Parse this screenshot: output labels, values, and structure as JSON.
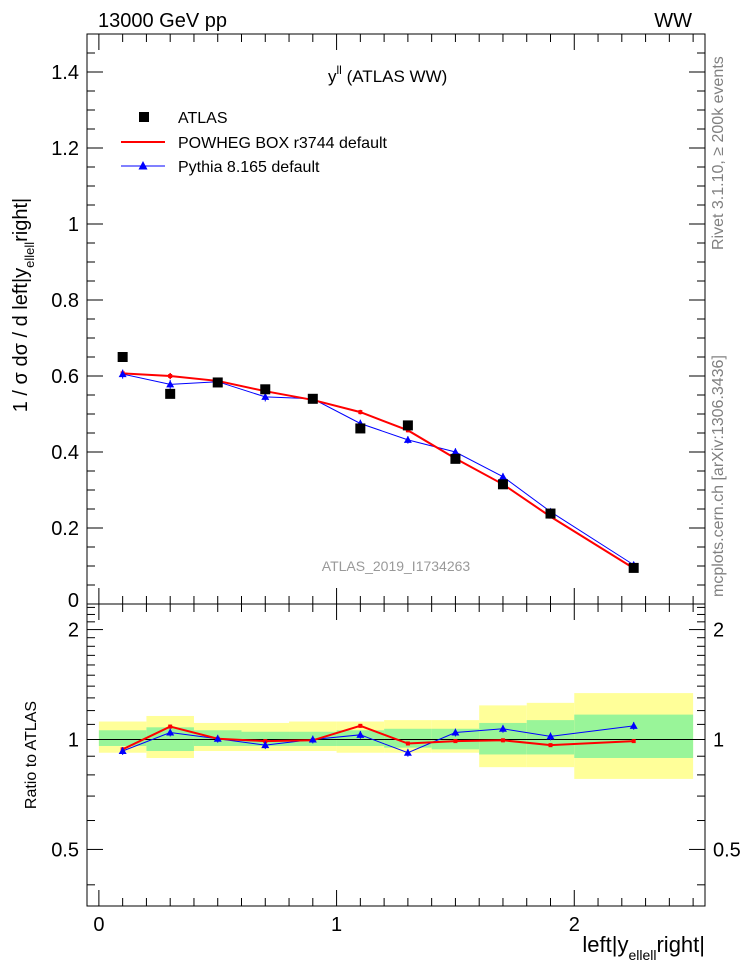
{
  "header": {
    "left": "13000 GeV pp",
    "right": "WW"
  },
  "main_plot": {
    "title_main": "y",
    "title_sup": "ll",
    "title_rest": " (ATLAS WW)",
    "ylabel_prefix": "1 / σ  dσ / d left|y",
    "ylabel_sub": "ellell",
    "ylabel_suffix": "right|",
    "watermark": "ATLAS_2019_I1734263",
    "ylim": [
      0,
      1.5
    ],
    "yticks": [
      0.2,
      0.4,
      0.6,
      0.8,
      1,
      1.2,
      1.4
    ],
    "ytick_labels": [
      "0.2",
      "0.4",
      "0.6",
      "0.8",
      "1",
      "1.2",
      "1.4"
    ],
    "yzero_label": "0"
  },
  "ratio_plot": {
    "ylabel": "Ratio to ATLAS",
    "ylim": [
      0.35,
      2.35
    ],
    "yticks": [
      0.5,
      1,
      2
    ],
    "ytick_labels": [
      "0.5",
      "1",
      "2"
    ]
  },
  "xaxis": {
    "xlim": [
      -0.05,
      2.55
    ],
    "xticks": [
      0,
      1,
      2
    ],
    "xtick_labels": [
      "0",
      "1",
      "2"
    ],
    "label_prefix": "left|y",
    "label_sub": "ellell",
    "label_suffix": "right|"
  },
  "side": {
    "rivet": "Rivet 3.1.10, ≥ 200k events",
    "mcplots": "mcplots.cern.ch [arXiv:1306.3436]"
  },
  "legend": {
    "atlas": "ATLAS",
    "powheg": "POWHEG BOX r3744 default",
    "pythia": "Pythia 8.165 default"
  },
  "colors": {
    "atlas": "#000000",
    "powheg": "#ff0000",
    "pythia": "#0000ff",
    "band_inner": "#99f599",
    "band_outer": "#ffff99"
  },
  "chart_data": {
    "type": "line",
    "bins": [
      {
        "lo": 0.0,
        "hi": 0.2
      },
      {
        "lo": 0.2,
        "hi": 0.4
      },
      {
        "lo": 0.4,
        "hi": 0.6
      },
      {
        "lo": 0.6,
        "hi": 0.8
      },
      {
        "lo": 0.8,
        "hi": 1.0
      },
      {
        "lo": 1.0,
        "hi": 1.2
      },
      {
        "lo": 1.2,
        "hi": 1.4
      },
      {
        "lo": 1.4,
        "hi": 1.6
      },
      {
        "lo": 1.6,
        "hi": 1.8
      },
      {
        "lo": 1.8,
        "hi": 2.0
      },
      {
        "lo": 2.0,
        "hi": 2.5
      }
    ],
    "x": [
      0.1,
      0.3,
      0.5,
      0.7,
      0.9,
      1.1,
      1.3,
      1.5,
      1.7,
      1.9,
      2.25
    ],
    "series": [
      {
        "name": "ATLAS",
        "kind": "data",
        "values": [
          0.65,
          0.553,
          0.583,
          0.565,
          0.54,
          0.462,
          0.47,
          0.382,
          0.315,
          0.238,
          0.095
        ]
      },
      {
        "name": "POWHEG BOX r3744 default",
        "kind": "mc",
        "values": [
          0.607,
          0.6,
          0.587,
          0.56,
          0.537,
          0.505,
          0.457,
          0.383,
          0.315,
          0.23,
          0.094
        ],
        "errors": [
          0.008,
          0.008,
          0.006,
          0.006,
          0.005,
          0.006,
          0.005,
          0.005,
          0.005,
          0.004,
          0.003
        ]
      },
      {
        "name": "Pythia 8.165 default",
        "kind": "mc",
        "values": [
          0.605,
          0.578,
          0.585,
          0.545,
          0.54,
          0.475,
          0.432,
          0.4,
          0.335,
          0.243,
          0.103
        ],
        "errors": [
          0.012,
          0.012,
          0.01,
          0.012,
          0.01,
          0.01,
          0.01,
          0.01,
          0.01,
          0.006,
          0.004
        ]
      }
    ],
    "ratio": {
      "band_inner": [
        [
          0.96,
          1.06
        ],
        [
          0.93,
          1.08
        ],
        [
          0.96,
          1.06
        ],
        [
          0.96,
          1.05
        ],
        [
          0.96,
          1.05
        ],
        [
          0.96,
          1.06
        ],
        [
          0.95,
          1.07
        ],
        [
          0.94,
          1.07
        ],
        [
          0.91,
          1.11
        ],
        [
          0.91,
          1.13
        ],
        [
          0.89,
          1.17
        ]
      ],
      "band_outer": [
        [
          0.92,
          1.12
        ],
        [
          0.89,
          1.16
        ],
        [
          0.93,
          1.11
        ],
        [
          0.93,
          1.11
        ],
        [
          0.93,
          1.12
        ],
        [
          0.92,
          1.12
        ],
        [
          0.92,
          1.13
        ],
        [
          0.92,
          1.13
        ],
        [
          0.84,
          1.24
        ],
        [
          0.84,
          1.26
        ],
        [
          0.78,
          1.34
        ]
      ],
      "powheg": [
        0.94,
        1.085,
        1.005,
        0.99,
        0.995,
        1.09,
        0.975,
        0.99,
        0.995,
        0.965,
        0.99
      ],
      "pythia": [
        0.93,
        1.045,
        1.005,
        0.965,
        1.0,
        1.03,
        0.92,
        1.045,
        1.07,
        1.02,
        1.09
      ]
    }
  }
}
